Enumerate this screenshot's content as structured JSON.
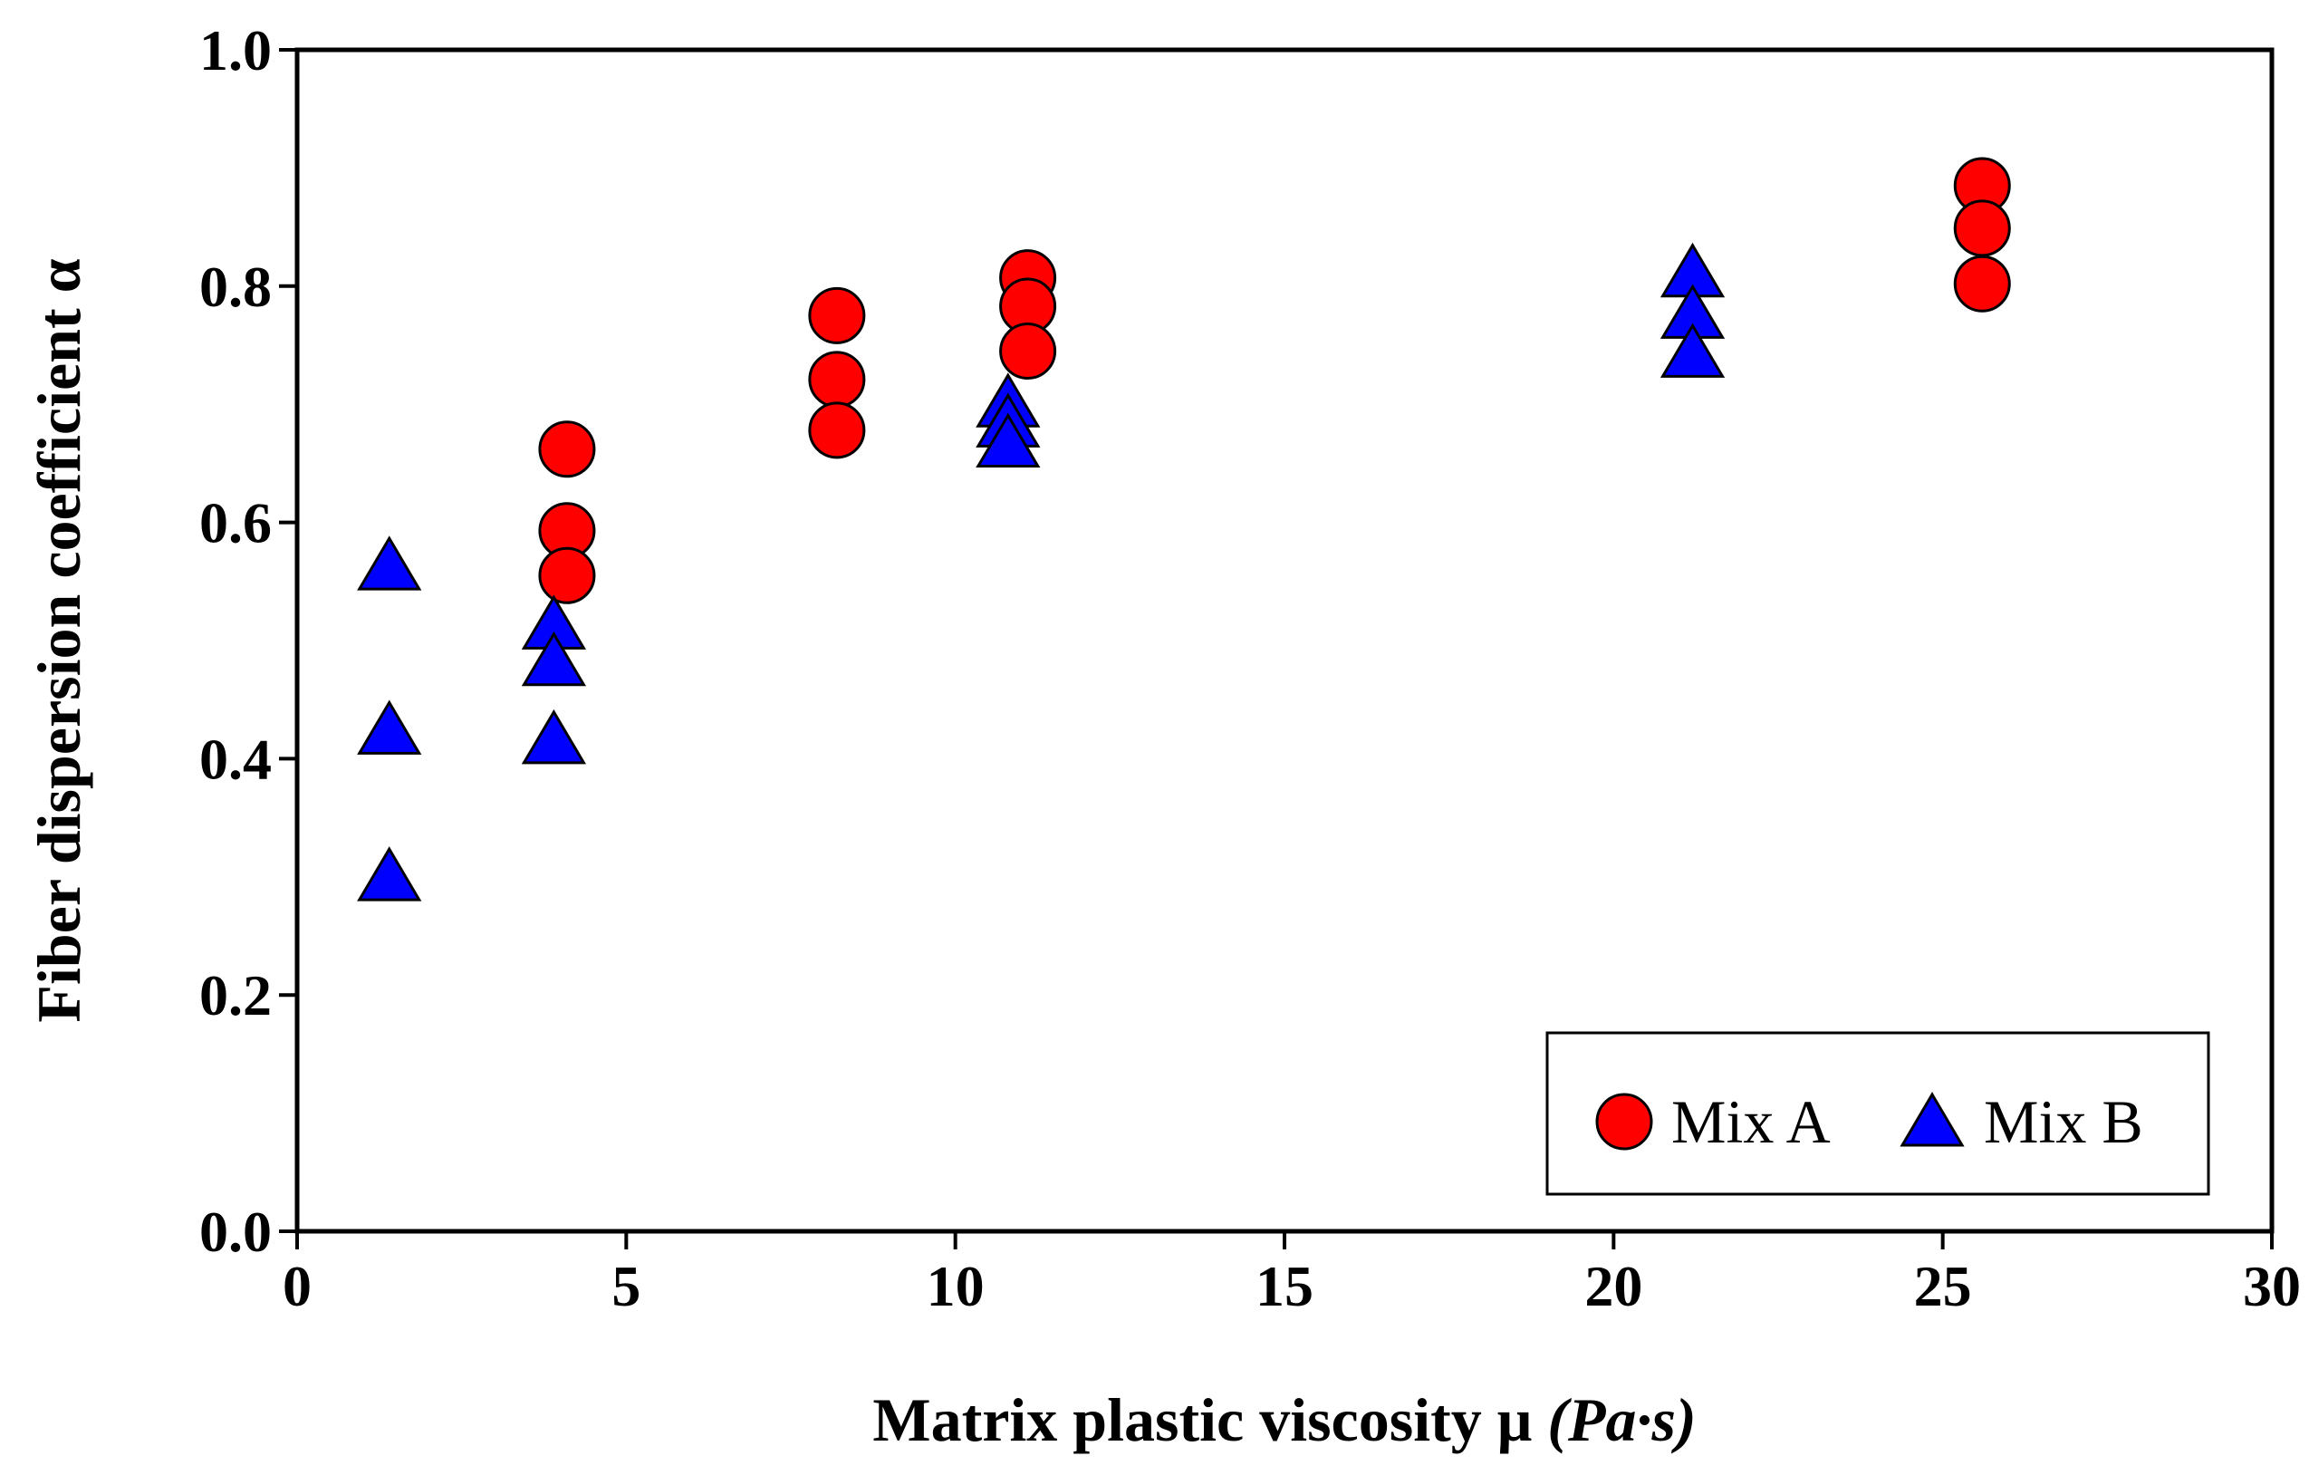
{
  "chart_data": {
    "type": "scatter",
    "title": "",
    "xlabel": "Matrix plastic viscosity μ ",
    "xlabel_units": "(Pa·s)",
    "ylabel": "Fiber dispersion coefficient α",
    "xlim": [
      0,
      30
    ],
    "ylim": [
      0.0,
      1.0
    ],
    "xticks": [
      0,
      5,
      10,
      15,
      20,
      25,
      30
    ],
    "xtick_labels": [
      "0",
      "5",
      "10",
      "15",
      "20",
      "25",
      "30"
    ],
    "yticks": [
      0.0,
      0.2,
      0.4,
      0.6,
      0.8,
      1.0
    ],
    "ytick_labels": [
      "0.0",
      "0.2",
      "0.4",
      "0.6",
      "0.8",
      "1.0"
    ],
    "grid": false,
    "legend_position": "bottom-right",
    "series": [
      {
        "name": "Mix A",
        "marker": "circle",
        "color": "#ff0000",
        "points": [
          {
            "x": 4.1,
            "y": 0.662
          },
          {
            "x": 4.1,
            "y": 0.593
          },
          {
            "x": 4.1,
            "y": 0.555
          },
          {
            "x": 8.2,
            "y": 0.775
          },
          {
            "x": 8.2,
            "y": 0.721
          },
          {
            "x": 8.2,
            "y": 0.678
          },
          {
            "x": 11.1,
            "y": 0.807
          },
          {
            "x": 11.1,
            "y": 0.783
          },
          {
            "x": 11.1,
            "y": 0.745
          },
          {
            "x": 25.6,
            "y": 0.885
          },
          {
            "x": 25.6,
            "y": 0.849
          },
          {
            "x": 25.6,
            "y": 0.802
          }
        ]
      },
      {
        "name": "Mix B",
        "marker": "triangle",
        "color": "#0000ff",
        "points": [
          {
            "x": 1.4,
            "y": 0.562
          },
          {
            "x": 1.4,
            "y": 0.423
          },
          {
            "x": 1.4,
            "y": 0.299
          },
          {
            "x": 3.9,
            "y": 0.512
          },
          {
            "x": 3.9,
            "y": 0.481
          },
          {
            "x": 3.9,
            "y": 0.415
          },
          {
            "x": 10.8,
            "y": 0.7
          },
          {
            "x": 10.8,
            "y": 0.683
          },
          {
            "x": 10.8,
            "y": 0.666
          },
          {
            "x": 21.2,
            "y": 0.81
          },
          {
            "x": 21.2,
            "y": 0.775
          },
          {
            "x": 21.2,
            "y": 0.742
          }
        ]
      }
    ]
  }
}
